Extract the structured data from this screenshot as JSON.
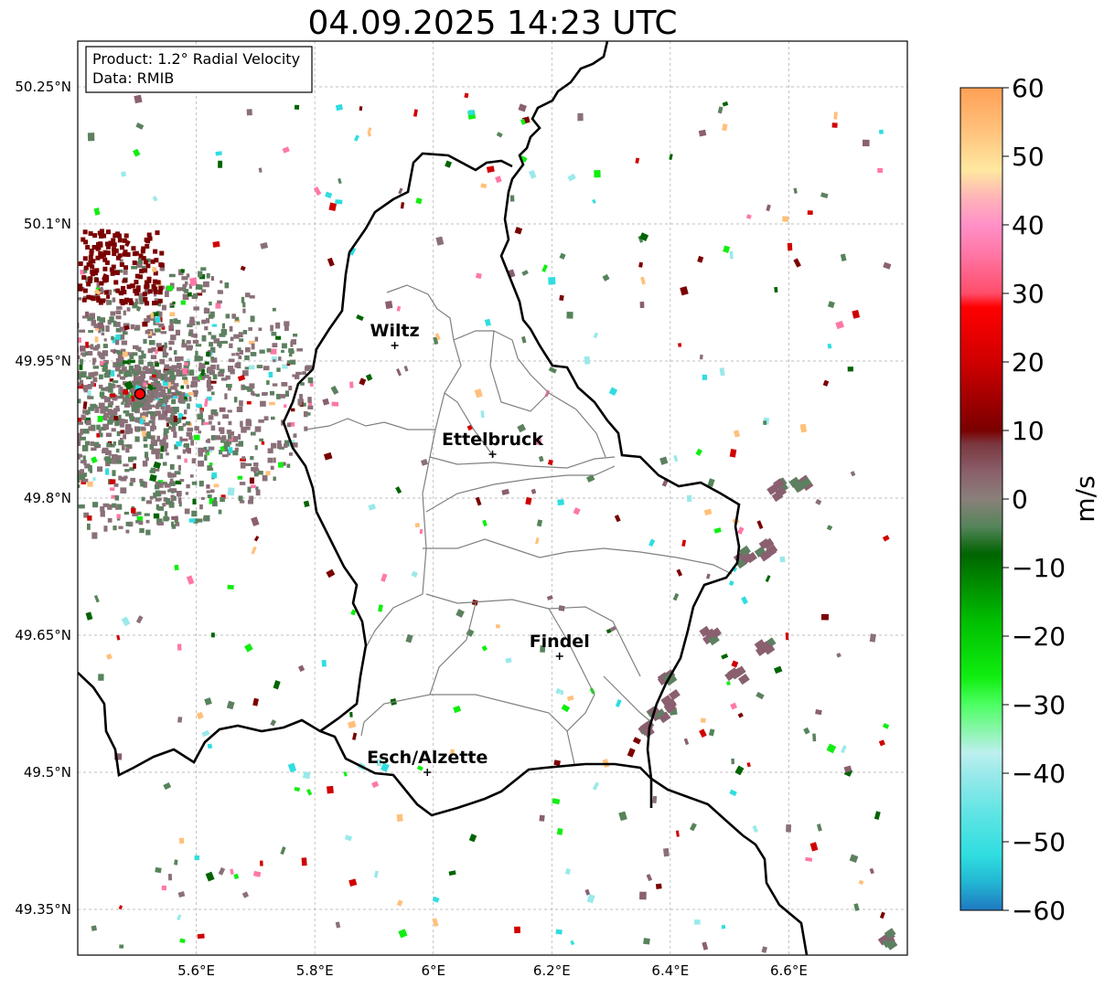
{
  "title": "04.09.2025 14:23 UTC",
  "info_box": {
    "product": "Product: 1.2° Radial Velocity",
    "data": "Data: RMIB"
  },
  "lat_ticks": [
    {
      "value": 50.25,
      "label": "50.25°N"
    },
    {
      "value": 50.1,
      "label": "50.1°N"
    },
    {
      "value": 49.95,
      "label": "49.95°N"
    },
    {
      "value": 49.8,
      "label": "49.8°N"
    },
    {
      "value": 49.65,
      "label": "49.65°N"
    },
    {
      "value": 49.5,
      "label": "49.5°N"
    },
    {
      "value": 49.35,
      "label": "49.35°N"
    }
  ],
  "lon_ticks": [
    {
      "value": 5.6,
      "label": "5.6°E"
    },
    {
      "value": 5.8,
      "label": "5.8°E"
    },
    {
      "value": 6.0,
      "label": "6°E"
    },
    {
      "value": 6.2,
      "label": "6.2°E"
    },
    {
      "value": 6.4,
      "label": "6.4°E"
    },
    {
      "value": 6.6,
      "label": "6.6°E"
    }
  ],
  "cities": [
    {
      "name": "Wiltz",
      "lon": 5.935,
      "lat": 49.967
    },
    {
      "name": "Ettelbruck",
      "lon": 6.1,
      "lat": 49.848
    },
    {
      "name": "Findel",
      "lon": 6.213,
      "lat": 49.627
    },
    {
      "name": "Esch/Alzette",
      "lon": 5.99,
      "lat": 49.5
    }
  ],
  "radar_site": {
    "lon": 5.505,
    "lat": 49.914
  },
  "colorbar": {
    "label": "m/s",
    "min": -60,
    "max": 60,
    "ticks": [
      {
        "value": 60,
        "label": "60"
      },
      {
        "value": 50,
        "label": "50"
      },
      {
        "value": 40,
        "label": "40"
      },
      {
        "value": 30,
        "label": "30"
      },
      {
        "value": 20,
        "label": "20"
      },
      {
        "value": 10,
        "label": "10"
      },
      {
        "value": 0,
        "label": "0"
      },
      {
        "value": -10,
        "label": "−10"
      },
      {
        "value": -20,
        "label": "−20"
      },
      {
        "value": -30,
        "label": "−30"
      },
      {
        "value": -40,
        "label": "−40"
      },
      {
        "value": -50,
        "label": "−50"
      },
      {
        "value": -60,
        "label": "−60"
      }
    ],
    "stops": [
      {
        "value": -60,
        "color": "#1f78c0"
      },
      {
        "value": -56,
        "color": "#22b5d3"
      },
      {
        "value": -52,
        "color": "#2fdde0"
      },
      {
        "value": -46,
        "color": "#5ee4e4"
      },
      {
        "value": -40,
        "color": "#9be9ea"
      },
      {
        "value": -37,
        "color": "#bdf0ef"
      },
      {
        "value": -34,
        "color": "#8ef5b0"
      },
      {
        "value": -30,
        "color": "#4dff63"
      },
      {
        "value": -26,
        "color": "#10ee10"
      },
      {
        "value": -18,
        "color": "#00c000"
      },
      {
        "value": -8,
        "color": "#006400"
      },
      {
        "value": -4,
        "color": "#55845a"
      },
      {
        "value": 0,
        "color": "#8a807a"
      },
      {
        "value": 4,
        "color": "#8a5f6a"
      },
      {
        "value": 8,
        "color": "#7a3840"
      },
      {
        "value": 10,
        "color": "#7a0000"
      },
      {
        "value": 20,
        "color": "#d00000"
      },
      {
        "value": 28,
        "color": "#ff0000"
      },
      {
        "value": 30,
        "color": "#ff4d6a"
      },
      {
        "value": 36,
        "color": "#ff78a8"
      },
      {
        "value": 40,
        "color": "#ff90c8"
      },
      {
        "value": 44,
        "color": "#ffb4b8"
      },
      {
        "value": 48,
        "color": "#ffe8a0"
      },
      {
        "value": 54,
        "color": "#ffc07a"
      },
      {
        "value": 60,
        "color": "#ffa055"
      }
    ]
  },
  "extent": {
    "lon_min": 5.4,
    "lon_max": 6.8,
    "lat_min": 49.3,
    "lat_max": 50.3
  }
}
